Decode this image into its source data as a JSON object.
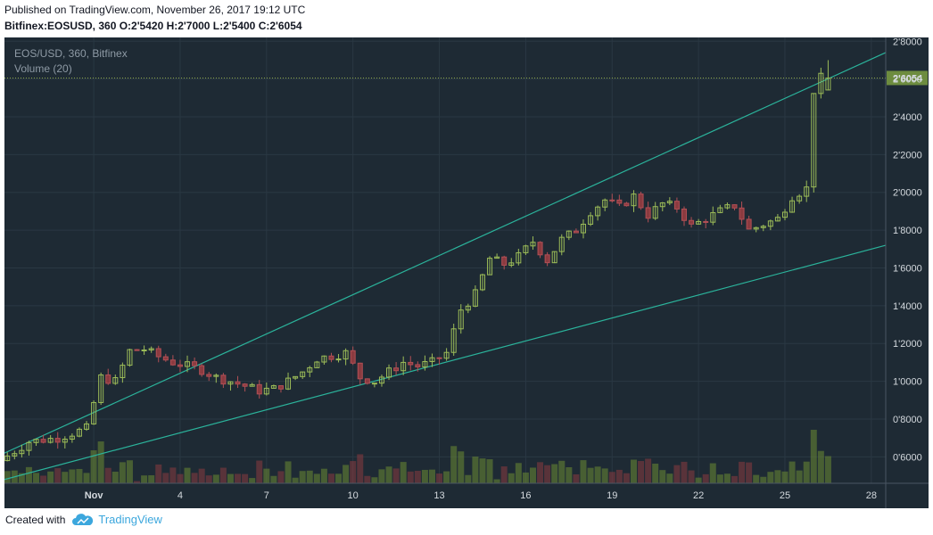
{
  "header": {
    "published": "Published on TradingView.com, November 26, 2017 19:12 UTC",
    "ohlc_line": "Bitfinex:EOSUSD, 360 O:2'5420 H:2'7000 L:2'5400 C:2'6054"
  },
  "legend": {
    "symbol": "EOS/USD, 360, Bitfinex",
    "volume": "Volume (20)"
  },
  "footer": {
    "created_with": "Created with",
    "brand": "TradingView"
  },
  "colors": {
    "background": "#1e2a34",
    "grid": "#2a3843",
    "up": "#6c8b33",
    "down": "#8b3b40",
    "up_wick": "#9cbc58",
    "down_wick": "#b24f55",
    "trendline": "#2bb39b",
    "price_line": "#8fa74a",
    "price_label_bg": "#6d8c3f"
  },
  "chart_data": {
    "type": "candlestick",
    "symbol": "EOS/USD",
    "interval": "360",
    "exchange": "Bitfinex",
    "last_price_label": "2'6054",
    "y_axis": {
      "ticks": [
        0.6,
        0.8,
        1.0,
        1.2,
        1.4,
        1.6,
        1.8,
        2.0,
        2.2,
        2.4,
        2.6,
        2.8
      ],
      "tick_labels": [
        "0'6000",
        "0'8000",
        "1'0000",
        "1'2000",
        "1'4000",
        "1'6000",
        "1'8000",
        "2'0000",
        "2'2000",
        "2'4000",
        "2'6000",
        "2'8000"
      ],
      "range": [
        0.46,
        2.82
      ]
    },
    "x_axis": {
      "labels": [
        "Nov",
        "4",
        "7",
        "10",
        "13",
        "16",
        "19",
        "22",
        "25",
        "28"
      ],
      "label_days": [
        1,
        4,
        7,
        10,
        13,
        16,
        19,
        22,
        25,
        28
      ],
      "range_days": [
        -2.1,
        28.5
      ]
    },
    "grid": true,
    "candles_per_day": 4,
    "first_candle_day": -2,
    "close_path": [
      [
        -2,
        0.58
      ],
      [
        -1,
        0.68
      ],
      [
        0,
        0.7
      ],
      [
        1,
        0.75
      ],
      [
        1.5,
        1.02
      ],
      [
        2,
        1.0
      ],
      [
        2.5,
        1.16
      ],
      [
        3,
        1.17
      ],
      [
        3.5,
        1.13
      ],
      [
        4,
        1.1
      ],
      [
        4.5,
        1.08
      ],
      [
        5,
        1.06
      ],
      [
        5.5,
        1.02
      ],
      [
        6,
        1.0
      ],
      [
        7,
        0.95
      ],
      [
        7.5,
        0.96
      ],
      [
        8,
        1.0
      ],
      [
        8.5,
        1.05
      ],
      [
        9,
        1.12
      ],
      [
        10,
        1.15
      ],
      [
        10.5,
        1.02
      ],
      [
        11,
        1.0
      ],
      [
        11.5,
        1.05
      ],
      [
        12,
        1.1
      ],
      [
        12.5,
        1.08
      ],
      [
        13,
        1.1
      ],
      [
        13.5,
        1.15
      ],
      [
        14,
        1.38
      ],
      [
        14.5,
        1.46
      ],
      [
        15,
        1.65
      ],
      [
        15.5,
        1.62
      ],
      [
        16,
        1.66
      ],
      [
        16.5,
        1.74
      ],
      [
        17,
        1.64
      ],
      [
        17.5,
        1.75
      ],
      [
        18,
        1.8
      ],
      [
        18.5,
        1.9
      ],
      [
        19,
        1.96
      ],
      [
        19.5,
        1.92
      ],
      [
        20,
        1.98
      ],
      [
        20.5,
        1.88
      ],
      [
        21,
        1.94
      ],
      [
        21.5,
        1.92
      ],
      [
        22,
        1.82
      ],
      [
        22.5,
        1.86
      ],
      [
        23,
        1.9
      ],
      [
        23.5,
        1.93
      ],
      [
        24,
        1.8
      ],
      [
        24.5,
        1.83
      ],
      [
        25,
        1.86
      ],
      [
        25.5,
        1.98
      ],
      [
        26,
        2.02
      ],
      [
        26.1,
        1.98
      ],
      [
        26.25,
        2.54
      ],
      [
        26.5,
        2.6054
      ]
    ],
    "last_candle": {
      "open": 2.542,
      "high": 2.7,
      "low": 2.54,
      "close": 2.6054
    },
    "trendlines": [
      {
        "name": "upper",
        "from": [
          -2.1,
          0.62
        ],
        "to": [
          28.5,
          2.74
        ]
      },
      {
        "name": "lower",
        "from": [
          -2.1,
          0.48
        ],
        "to": [
          28.5,
          1.72
        ]
      }
    ],
    "volume": {
      "period": 20,
      "max_bar_fraction_of_pane": 1.0
    }
  }
}
